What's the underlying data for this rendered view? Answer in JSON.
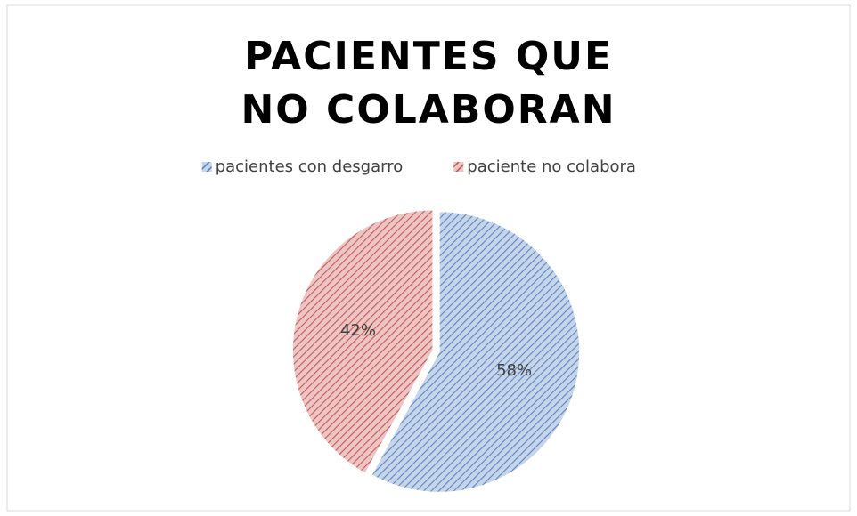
{
  "chart_data": {
    "type": "pie",
    "title": "PACIENTES QUE  NO COLABORAN",
    "categories": [
      "pacientes con desgarro",
      "paciente no colabora"
    ],
    "values": [
      58,
      42
    ],
    "value_labels": [
      "58%",
      "42%"
    ],
    "colors": [
      "#4f81bd",
      "#c0504d"
    ],
    "legend": "top"
  }
}
